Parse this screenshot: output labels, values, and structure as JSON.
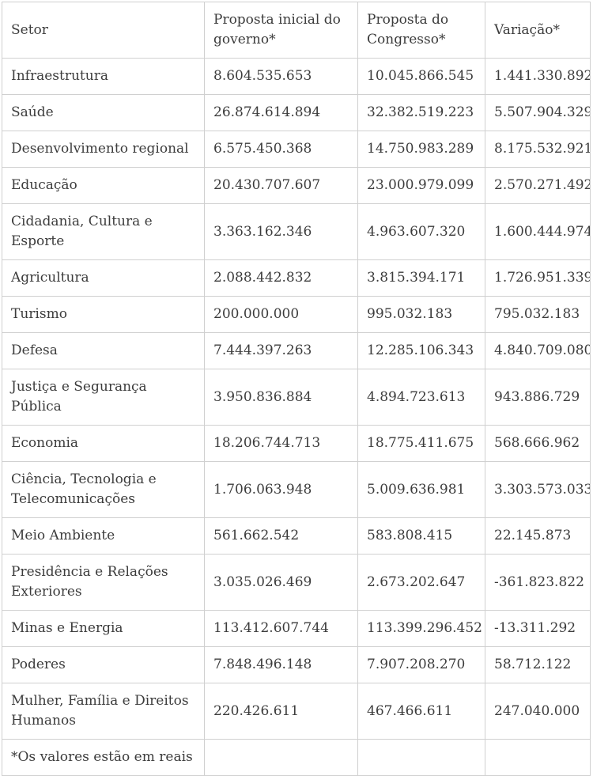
{
  "colors": {
    "text": "#3c3c3c",
    "border": "#d0d0d0",
    "background": "#ffffff"
  },
  "table": {
    "header": {
      "c0": "Setor",
      "c1": "Proposta inicial do governo*",
      "c2": "Proposta do Congresso*",
      "c3": "Variação*"
    },
    "rows": [
      {
        "c0": "Infraestrutura",
        "c1": "8.604.535.653",
        "c2": "10.045.866.545",
        "c3": "1.441.330.892"
      },
      {
        "c0": "Saúde",
        "c1": "26.874.614.894",
        "c2": "32.382.519.223",
        "c3": "5.507.904.329"
      },
      {
        "c0": "Desenvolvimento regional",
        "c1": "6.575.450.368",
        "c2": "14.750.983.289",
        "c3": "8.175.532.921"
      },
      {
        "c0": "Educação",
        "c1": "20.430.707.607",
        "c2": "23.000.979.099",
        "c3": "2.570.271.492"
      },
      {
        "c0": "Cidadania, Cultura e Esporte",
        "c1": "3.363.162.346",
        "c2": "4.963.607.320",
        "c3": "1.600.444.974"
      },
      {
        "c0": "Agricultura",
        "c1": "2.088.442.832",
        "c2": "3.815.394.171",
        "c3": "1.726.951.339"
      },
      {
        "c0": "Turismo",
        "c1": "200.000.000",
        "c2": "995.032.183",
        "c3": "795.032.183"
      },
      {
        "c0": "Defesa",
        "c1": "7.444.397.263",
        "c2": "12.285.106.343",
        "c3": "4.840.709.080"
      },
      {
        "c0": "Justiça e Segurança Pública",
        "c1": "3.950.836.884",
        "c2": "4.894.723.613",
        "c3": "943.886.729"
      },
      {
        "c0": "Economia",
        "c1": "18.206.744.713",
        "c2": "18.775.411.675",
        "c3": "568.666.962"
      },
      {
        "c0": "Ciência, Tecnologia e Telecomunicações",
        "c1": "1.706.063.948",
        "c2": "5.009.636.981",
        "c3": "3.303.573.033"
      },
      {
        "c0": "Meio Ambiente",
        "c1": "561.662.542",
        "c2": "583.808.415",
        "c3": "22.145.873"
      },
      {
        "c0": "Presidência e Relações Exteriores",
        "c1": "3.035.026.469",
        "c2": "2.673.202.647",
        "c3": "-361.823.822"
      },
      {
        "c0": "Minas e Energia",
        "c1": "113.412.607.744",
        "c2": "113.399.296.452",
        "c3": "-13.311.292"
      },
      {
        "c0": "Poderes",
        "c1": "7.848.496.148",
        "c2": "7.907.208.270",
        "c3": "58.712.122"
      },
      {
        "c0": "Mulher, Família e Direitos Humanos",
        "c1": "220.426.611",
        "c2": "467.466.611",
        "c3": "247.040.000"
      }
    ],
    "footer": {
      "c0": "*Os valores estão em reais",
      "c1": "",
      "c2": "",
      "c3": ""
    }
  }
}
